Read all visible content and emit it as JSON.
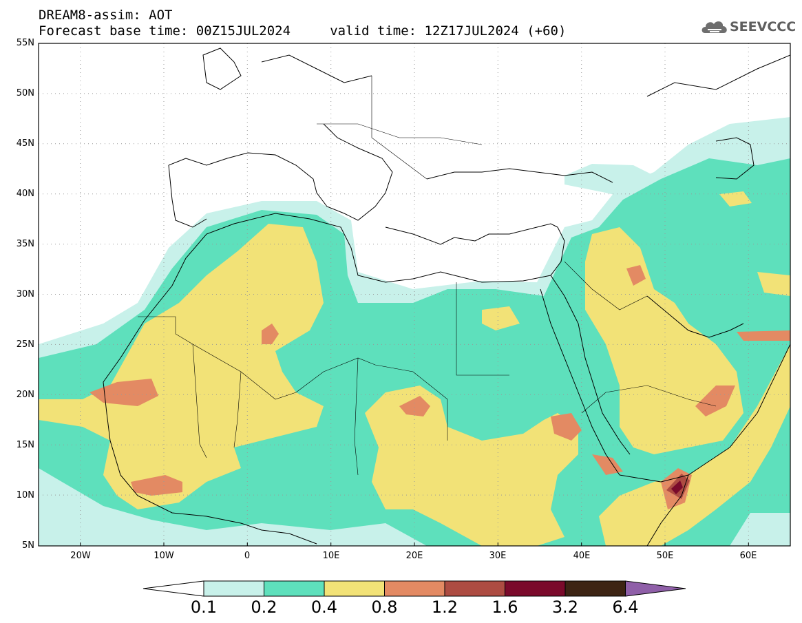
{
  "header": {
    "title_line1": "DREAM8-assim: AOT",
    "title_line2": "Forecast base time: 00Z15JUL2024     valid time: 12Z17JUL2024 (+60)"
  },
  "logo": {
    "text": "SEEVCCC",
    "icon": "cloud-icon"
  },
  "map": {
    "lon_range": [
      -25,
      65
    ],
    "lat_range": [
      5,
      55
    ],
    "lat_labels": [
      "55N",
      "50N",
      "45N",
      "40N",
      "35N",
      "30N",
      "25N",
      "20N",
      "15N",
      "10N",
      "5N"
    ],
    "lon_labels": [
      "20W",
      "10W",
      "0",
      "10E",
      "20E",
      "30E",
      "40E",
      "50E",
      "60E"
    ],
    "gridlines": "dotted"
  },
  "colorbar": {
    "levels": [
      "0.1",
      "0.2",
      "0.4",
      "0.8",
      "1.2",
      "1.6",
      "3.2",
      "6.4"
    ],
    "colors": [
      "#c8f1ea",
      "#5ee0bc",
      "#f2e277",
      "#e38a63",
      "#ad4c42",
      "#7a0a2b",
      "#3d2414",
      "#8f5fa8"
    ]
  }
}
